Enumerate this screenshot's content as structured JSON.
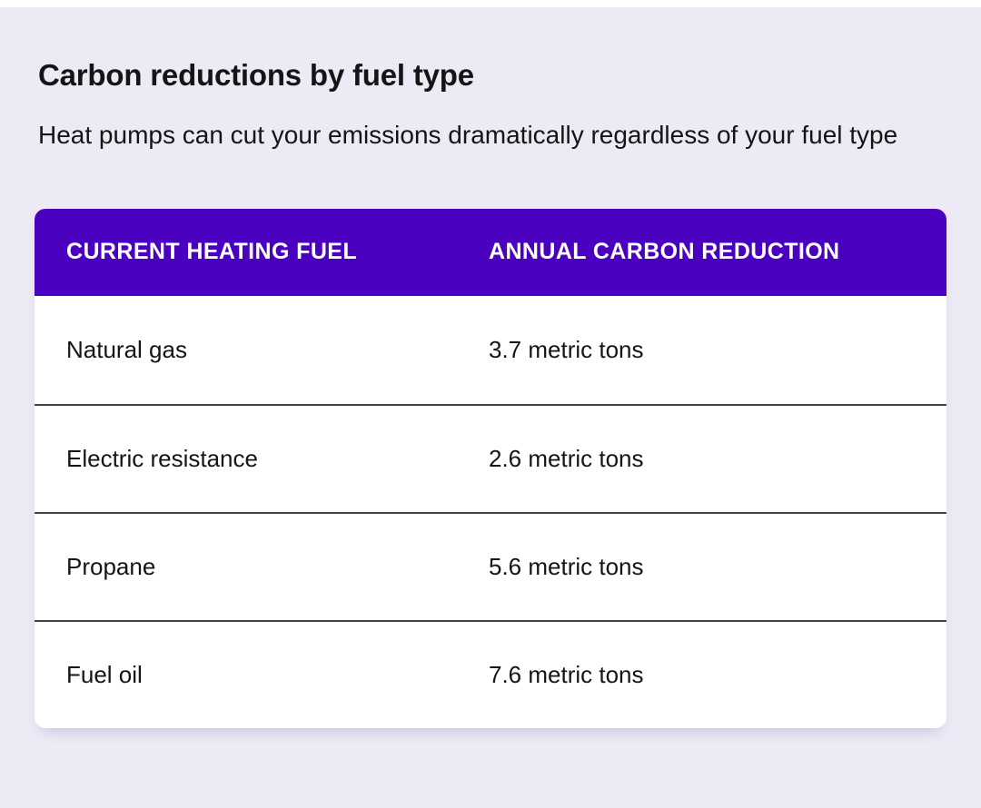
{
  "page": {
    "title": "Carbon reductions by fuel type",
    "subtitle": "Heat pumps can cut your emissions dramatically regardless of your fuel type"
  },
  "table": {
    "columns": [
      {
        "label": "CURRENT HEATING FUEL"
      },
      {
        "label": "ANNUAL CARBON REDUCTION"
      }
    ],
    "rows": [
      {
        "fuel": "Natural gas",
        "reduction": "3.7 metric tons"
      },
      {
        "fuel": "Electric resistance",
        "reduction": "2.6 metric tons"
      },
      {
        "fuel": "Propane",
        "reduction": "5.6 metric tons"
      },
      {
        "fuel": "Fuel oil",
        "reduction": "7.6 metric tons"
      }
    ]
  },
  "colors": {
    "page_background": "#EDEAF6",
    "card_background": "#FFFFFF",
    "table_header_background": "#4B02C0",
    "table_header_text": "#FFFFFF",
    "body_text": "#151515",
    "row_divider": "#434343"
  },
  "chart_data": {
    "type": "table",
    "title": "Carbon reductions by fuel type",
    "subtitle": "Heat pumps can cut your emissions dramatically regardless of your fuel type",
    "columns": [
      "CURRENT HEATING FUEL",
      "ANNUAL CARBON REDUCTION"
    ],
    "categories": [
      "Natural gas",
      "Electric resistance",
      "Propane",
      "Fuel oil"
    ],
    "values": [
      3.7,
      2.6,
      5.6,
      7.6
    ],
    "unit": "metric tons"
  }
}
